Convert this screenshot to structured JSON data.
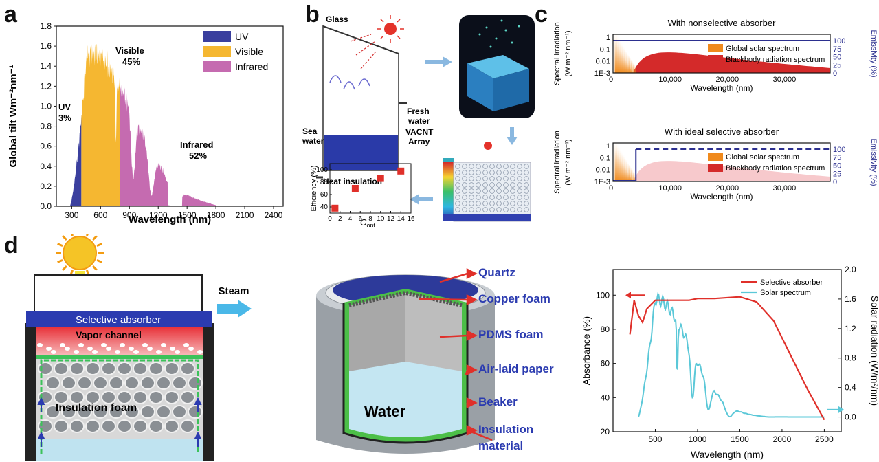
{
  "panels": {
    "a": {
      "letter": "a",
      "chart_data": {
        "type": "area",
        "ylabel": "Global tilt  Wm⁻²nm⁻¹",
        "xlabel": "Wavelength (nm)",
        "xlim": [
          140,
          2500
        ],
        "ylim": [
          0,
          1.8
        ],
        "xticks": [
          300,
          600,
          900,
          1200,
          1500,
          1800,
          2100,
          2400
        ],
        "yticks": [
          0.0,
          0.2,
          0.4,
          0.6,
          0.8,
          1.0,
          1.2,
          1.4,
          1.6,
          1.8
        ],
        "legend": [
          {
            "name": "UV",
            "color": "#3a3f9e"
          },
          {
            "name": "Visible",
            "color": "#f5b731"
          },
          {
            "name": "Infrared",
            "color": "#c56bb0"
          }
        ],
        "legend_position": "top-right",
        "annotations": [
          {
            "label": "UV",
            "value": "3%"
          },
          {
            "label": "Visible",
            "value": "45%"
          },
          {
            "label": "Infrared",
            "value": "52%"
          }
        ]
      }
    },
    "b": {
      "letter": "b",
      "labels": {
        "glass": "Glass",
        "fresh_water": "Fresh water",
        "vacnt": "VACNT Array",
        "sea_water": "Sea water",
        "heat_insulation": "Heat insulation"
      },
      "chart_data": {
        "type": "scatter",
        "ylabel": "Efficiency (%)",
        "xlabel": "C",
        "xlabel_sub": "opt",
        "xticks": [
          0,
          2,
          4,
          6,
          8,
          10,
          12,
          14,
          16
        ],
        "yticks": [
          40,
          60,
          80,
          100
        ],
        "xlim": [
          0,
          16
        ],
        "ylim": [
          30,
          110
        ],
        "x": [
          1,
          5,
          10,
          14
        ],
        "y": [
          38,
          70,
          86,
          98
        ],
        "color": "#e0302a"
      }
    },
    "c": {
      "letter": "c",
      "charts": [
        {
          "title": "With nonselective absorber",
          "ylabel": "Spectral irradiation (W m⁻² nm⁻¹)",
          "y2label": "Emissivity (%)",
          "xlabel": "Wavelength (nm)",
          "xticks": [
            "10,000",
            "20,000",
            "30,000"
          ],
          "xtick_values": [
            10000,
            20000,
            30000
          ],
          "xlim": [
            0,
            38000
          ],
          "yticks": [
            "1",
            "0.1",
            "0.01",
            "1E-3"
          ],
          "y2ticks": [
            "100",
            "75",
            "50",
            "25",
            "0"
          ],
          "legend": [
            "Global solar spectrum",
            "Blackbody radiation spectrum"
          ],
          "emissivity": "constant 100%"
        },
        {
          "title": "With ideal selective absorber",
          "ylabel": "Spectral irradiation (W m⁻² nm⁻¹)",
          "y2label": "Emissivity (%)",
          "xlabel": "Wavelength (nm)",
          "xticks": [
            "10,000",
            "20,000",
            "30,000"
          ],
          "xtick_values": [
            10000,
            20000,
            30000
          ],
          "xlim": [
            0,
            38000
          ],
          "yticks": [
            "1",
            "0.1",
            "0.01",
            "1E-3"
          ],
          "y2ticks": [
            "100",
            "75",
            "50",
            "25",
            "0"
          ],
          "legend": [
            "Global solar spectrum",
            "Blackbody radiation spectrum"
          ],
          "emissivity": "step 0→100% near 4000 nm"
        }
      ],
      "colors": {
        "solar": "#f08a1c",
        "blackbody": "#d42a2a",
        "blackbody_faded": "#f7c9cc",
        "emissivity": "#2b2f8f"
      }
    },
    "d": {
      "letter": "d",
      "left": {
        "absorber": "Selective absorber",
        "vapor": "Vapor  channel",
        "insulation": "Insulation foam",
        "steam": "Steam"
      },
      "middle": {
        "water": "Water",
        "labels": [
          "Quartz",
          "Copper foam",
          "PDMS foam",
          "Air-laid paper",
          "Beaker",
          "Insulation material"
        ]
      },
      "chart_data": {
        "type": "line",
        "xlabel": "Wavelength (nm)",
        "ylabel": "Absorbance (%)",
        "y2label": "Solar radiation (W/m²/nm)",
        "xticks": [
          500,
          1000,
          1500,
          2000,
          2500
        ],
        "xlim": [
          0,
          2700
        ],
        "yticks": [
          20,
          40,
          60,
          80,
          100
        ],
        "ylim": [
          20,
          115
        ],
        "y2ticks": [
          "0.0",
          "0.4",
          "0.8",
          "1.2",
          "1.6",
          "2.0"
        ],
        "y2lim": [
          -0.2,
          2.0
        ],
        "series": [
          {
            "name": "Selective absorber",
            "color": "#e0302a",
            "x": [
              200,
              250,
              300,
              350,
              400,
              500,
              700,
              900,
              1000,
              1200,
              1500,
              1700,
              1900,
              2100,
              2300,
              2500
            ],
            "y": [
              77,
              97,
              88,
              84,
              92,
              97,
              97,
              97,
              98,
              98,
              99,
              96,
              85,
              65,
              45,
              27
            ]
          },
          {
            "name": "Solar spectrum",
            "color": "#5bc8d8"
          }
        ],
        "legend_position": "top-right"
      }
    }
  }
}
